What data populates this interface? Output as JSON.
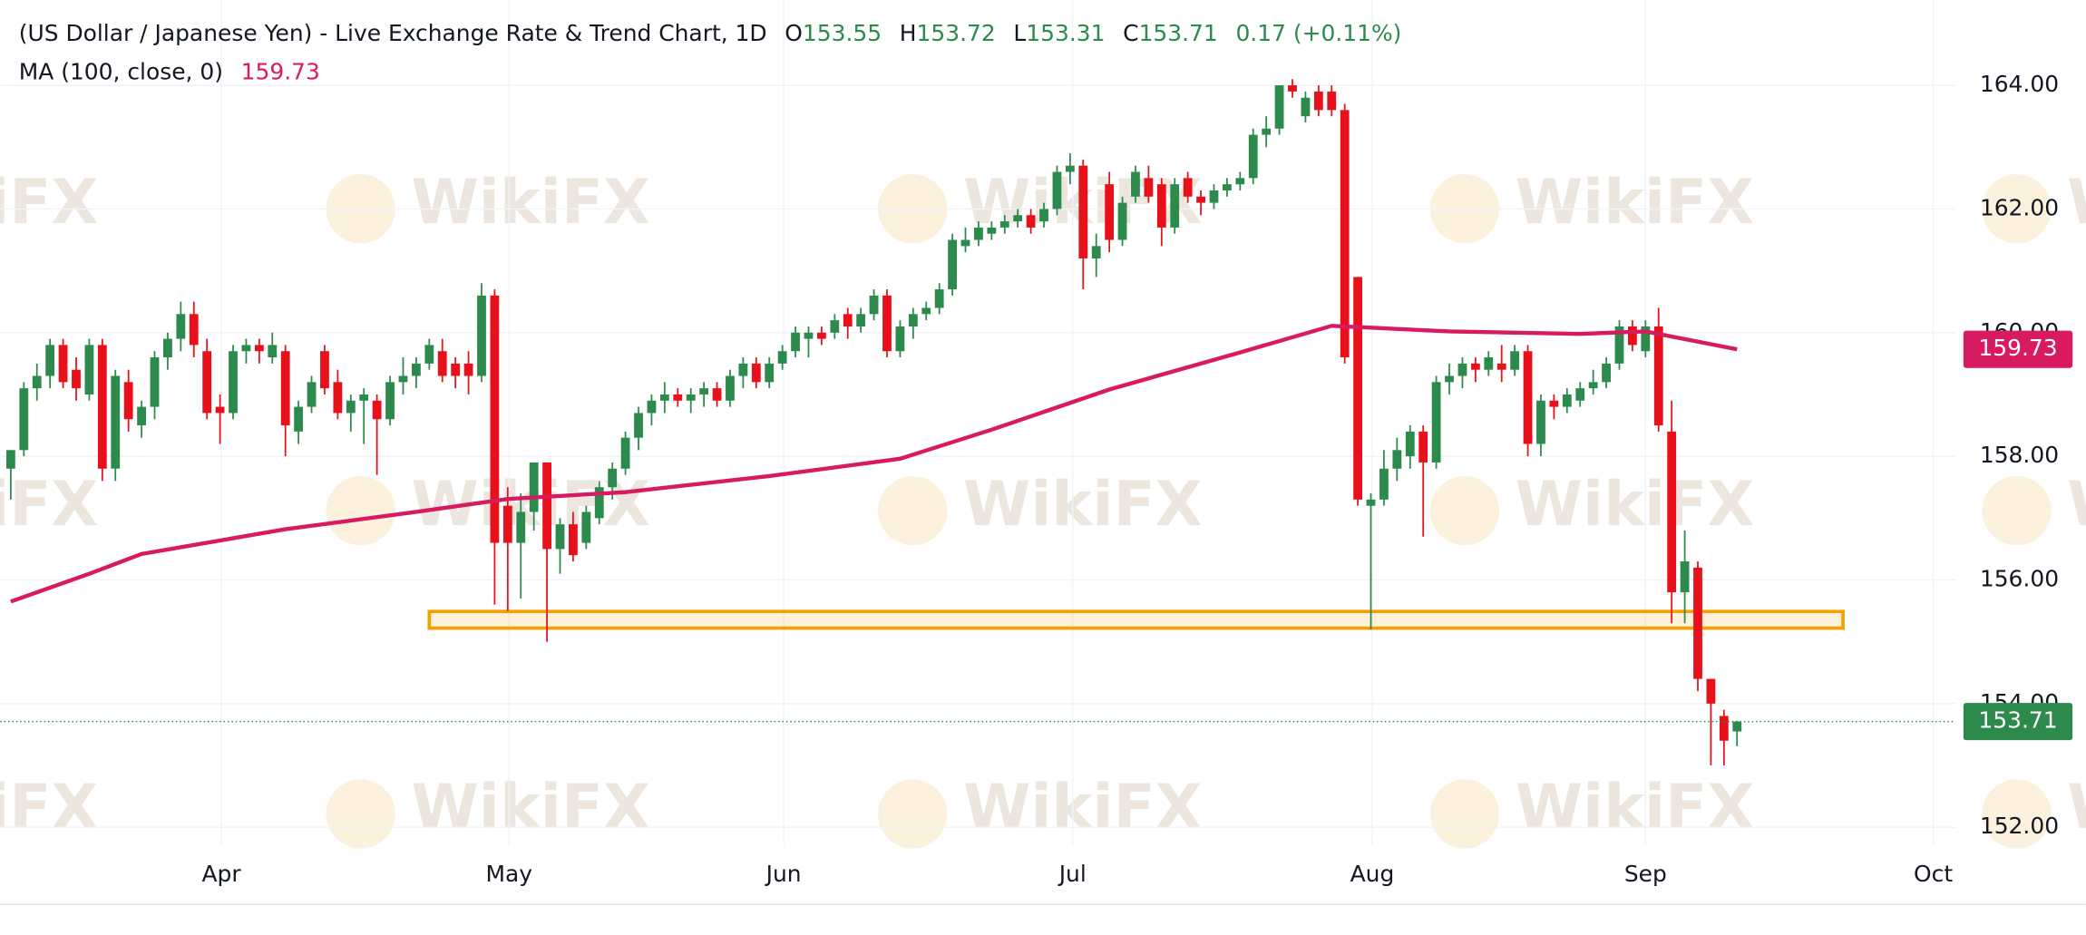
{
  "chart_data": {
    "type": "candlestick",
    "title": "(US Dollar / Japanese Yen) - Live Exchange Rate & Trend Chart, 1D",
    "ohlc_labels": [
      "O",
      "H",
      "L",
      "C"
    ],
    "change_label": "0.17 (+0.11%)",
    "watermark": "WikiFX",
    "up_color": "#2b8a4c",
    "down_color": "#e8111b",
    "ohlc": [
      [
        157.8,
        158.1,
        157.3,
        158.1
      ],
      [
        158.1,
        159.2,
        158.0,
        159.1
      ],
      [
        159.1,
        159.5,
        158.9,
        159.3
      ],
      [
        159.3,
        159.9,
        159.1,
        159.8
      ],
      [
        159.8,
        159.9,
        159.1,
        159.2
      ],
      [
        159.4,
        159.6,
        158.9,
        159.1
      ],
      [
        159.0,
        159.9,
        158.9,
        159.8
      ],
      [
        159.8,
        159.9,
        157.6,
        157.8
      ],
      [
        157.8,
        159.4,
        157.6,
        159.3
      ],
      [
        159.2,
        159.4,
        158.4,
        158.6
      ],
      [
        158.5,
        158.9,
        158.3,
        158.8
      ],
      [
        158.8,
        159.7,
        158.6,
        159.6
      ],
      [
        159.6,
        160.0,
        159.4,
        159.9
      ],
      [
        159.9,
        160.5,
        159.7,
        160.3
      ],
      [
        160.3,
        160.5,
        159.6,
        159.8
      ],
      [
        159.7,
        159.9,
        158.6,
        158.7
      ],
      [
        158.8,
        159.0,
        158.2,
        158.7
      ],
      [
        158.7,
        159.8,
        158.6,
        159.7
      ],
      [
        159.7,
        159.9,
        159.5,
        159.8
      ],
      [
        159.8,
        159.9,
        159.5,
        159.7
      ],
      [
        159.6,
        160.0,
        159.5,
        159.8
      ],
      [
        159.7,
        159.8,
        158.0,
        158.5
      ],
      [
        158.4,
        158.9,
        158.2,
        158.8
      ],
      [
        158.8,
        159.3,
        158.7,
        159.2
      ],
      [
        159.7,
        159.8,
        159.0,
        159.1
      ],
      [
        159.2,
        159.4,
        158.6,
        158.7
      ],
      [
        158.7,
        159.0,
        158.4,
        158.9
      ],
      [
        158.9,
        159.1,
        158.2,
        159.0
      ],
      [
        158.9,
        159.0,
        157.7,
        158.6
      ],
      [
        158.6,
        159.3,
        158.5,
        159.2
      ],
      [
        159.2,
        159.6,
        159.0,
        159.3
      ],
      [
        159.3,
        159.6,
        159.1,
        159.5
      ],
      [
        159.5,
        159.9,
        159.4,
        159.8
      ],
      [
        159.7,
        159.9,
        159.2,
        159.3
      ],
      [
        159.5,
        159.6,
        159.1,
        159.3
      ],
      [
        159.5,
        159.7,
        159.0,
        159.3
      ],
      [
        159.3,
        160.8,
        159.2,
        160.6
      ],
      [
        160.6,
        160.7,
        155.6,
        156.6
      ],
      [
        157.2,
        157.5,
        155.5,
        156.6
      ],
      [
        156.6,
        157.4,
        155.7,
        157.1
      ],
      [
        157.1,
        157.9,
        156.8,
        157.9
      ],
      [
        157.9,
        157.9,
        155.0,
        156.5
      ],
      [
        156.5,
        157.0,
        156.1,
        156.9
      ],
      [
        156.9,
        157.1,
        156.3,
        156.4
      ],
      [
        156.6,
        157.2,
        156.5,
        157.1
      ],
      [
        157.0,
        157.6,
        156.9,
        157.5
      ],
      [
        157.5,
        157.9,
        157.3,
        157.8
      ],
      [
        157.8,
        158.4,
        157.7,
        158.3
      ],
      [
        158.3,
        158.8,
        158.1,
        158.7
      ],
      [
        158.7,
        159.0,
        158.5,
        158.9
      ],
      [
        158.9,
        159.2,
        158.7,
        159.0
      ],
      [
        159.0,
        159.1,
        158.8,
        158.9
      ],
      [
        158.9,
        159.1,
        158.7,
        159.0
      ],
      [
        159.0,
        159.2,
        158.8,
        159.1
      ],
      [
        159.1,
        159.2,
        158.8,
        158.9
      ],
      [
        158.9,
        159.4,
        158.8,
        159.3
      ],
      [
        159.3,
        159.6,
        159.1,
        159.5
      ],
      [
        159.5,
        159.6,
        159.1,
        159.2
      ],
      [
        159.2,
        159.6,
        159.1,
        159.5
      ],
      [
        159.5,
        159.8,
        159.4,
        159.7
      ],
      [
        159.7,
        160.1,
        159.6,
        160.0
      ],
      [
        159.9,
        160.1,
        159.6,
        160.0
      ],
      [
        160.0,
        160.1,
        159.8,
        159.9
      ],
      [
        160.0,
        160.3,
        159.9,
        160.2
      ],
      [
        160.3,
        160.4,
        159.9,
        160.1
      ],
      [
        160.1,
        160.4,
        160.0,
        160.3
      ],
      [
        160.3,
        160.7,
        160.2,
        160.6
      ],
      [
        160.6,
        160.7,
        159.6,
        159.7
      ],
      [
        159.7,
        160.2,
        159.6,
        160.1
      ],
      [
        160.1,
        160.4,
        159.9,
        160.3
      ],
      [
        160.3,
        160.5,
        160.2,
        160.4
      ],
      [
        160.4,
        160.8,
        160.3,
        160.7
      ],
      [
        160.7,
        161.6,
        160.6,
        161.5
      ],
      [
        161.4,
        161.7,
        161.3,
        161.5
      ],
      [
        161.5,
        161.8,
        161.4,
        161.7
      ],
      [
        161.6,
        161.8,
        161.5,
        161.7
      ],
      [
        161.7,
        161.9,
        161.6,
        161.8
      ],
      [
        161.8,
        162.0,
        161.7,
        161.9
      ],
      [
        161.9,
        162.0,
        161.6,
        161.7
      ],
      [
        161.8,
        162.1,
        161.7,
        162.0
      ],
      [
        162.0,
        162.7,
        161.9,
        162.6
      ],
      [
        162.6,
        162.9,
        162.4,
        162.7
      ],
      [
        162.7,
        162.8,
        160.7,
        161.2
      ],
      [
        161.2,
        161.6,
        160.9,
        161.4
      ],
      [
        162.4,
        162.6,
        161.3,
        161.5
      ],
      [
        161.5,
        162.2,
        161.4,
        162.1
      ],
      [
        162.2,
        162.7,
        162.1,
        162.6
      ],
      [
        162.5,
        162.7,
        162.1,
        162.2
      ],
      [
        162.4,
        162.5,
        161.4,
        161.7
      ],
      [
        161.7,
        162.5,
        161.6,
        162.4
      ],
      [
        162.5,
        162.6,
        162.1,
        162.2
      ],
      [
        162.2,
        162.3,
        161.9,
        162.1
      ],
      [
        162.1,
        162.4,
        162.0,
        162.3
      ],
      [
        162.3,
        162.5,
        162.2,
        162.4
      ],
      [
        162.4,
        162.6,
        162.3,
        162.5
      ],
      [
        162.5,
        163.3,
        162.4,
        163.2
      ],
      [
        163.2,
        163.5,
        163.0,
        163.3
      ],
      [
        163.3,
        164.0,
        163.2,
        164.0
      ],
      [
        164.0,
        164.1,
        163.8,
        163.9
      ],
      [
        163.5,
        163.9,
        163.4,
        163.8
      ],
      [
        163.9,
        164.0,
        163.5,
        163.6
      ],
      [
        163.9,
        164.0,
        163.5,
        163.6
      ],
      [
        163.6,
        163.7,
        159.5,
        159.6
      ],
      [
        160.9,
        160.9,
        157.2,
        157.3
      ],
      [
        157.2,
        157.4,
        155.2,
        157.3
      ],
      [
        157.3,
        158.1,
        157.2,
        157.8
      ],
      [
        157.8,
        158.3,
        157.6,
        158.1
      ],
      [
        158.0,
        158.5,
        157.8,
        158.4
      ],
      [
        158.4,
        158.5,
        156.7,
        157.9
      ],
      [
        157.9,
        159.3,
        157.8,
        159.2
      ],
      [
        159.2,
        159.5,
        159.0,
        159.3
      ],
      [
        159.3,
        159.6,
        159.1,
        159.5
      ],
      [
        159.5,
        159.6,
        159.2,
        159.4
      ],
      [
        159.4,
        159.7,
        159.3,
        159.6
      ],
      [
        159.5,
        159.8,
        159.2,
        159.4
      ],
      [
        159.4,
        159.8,
        159.3,
        159.7
      ],
      [
        159.7,
        159.8,
        158.0,
        158.2
      ],
      [
        158.2,
        159.0,
        158.0,
        158.9
      ],
      [
        158.9,
        159.0,
        158.6,
        158.8
      ],
      [
        158.8,
        159.1,
        158.7,
        159.0
      ],
      [
        158.9,
        159.2,
        158.8,
        159.1
      ],
      [
        159.1,
        159.4,
        159.0,
        159.2
      ],
      [
        159.2,
        159.6,
        159.1,
        159.5
      ],
      [
        159.5,
        160.2,
        159.4,
        160.1
      ],
      [
        160.1,
        160.2,
        159.7,
        159.8
      ],
      [
        159.7,
        160.2,
        159.6,
        160.1
      ],
      [
        160.1,
        160.4,
        158.4,
        158.5
      ],
      [
        158.4,
        158.9,
        155.3,
        155.8
      ],
      [
        155.8,
        156.8,
        155.3,
        156.3
      ],
      [
        156.2,
        156.3,
        154.2,
        154.4
      ],
      [
        154.4,
        154.4,
        153.0,
        154.0
      ],
      [
        153.8,
        153.9,
        153.0,
        153.4
      ],
      [
        153.55,
        153.72,
        153.31,
        153.71
      ]
    ],
    "ma": {
      "name": "MA (100, close, 0)",
      "color": "#d81b60",
      "x": [
        0,
        6,
        10,
        21,
        31,
        38,
        47,
        58,
        68,
        75,
        84,
        94,
        101,
        110,
        120,
        125,
        132
      ],
      "values": [
        155.65,
        156.1,
        156.42,
        156.82,
        157.1,
        157.31,
        157.42,
        157.68,
        157.96,
        158.43,
        159.08,
        159.68,
        160.11,
        160.02,
        159.98,
        160.02,
        159.73
      ]
    },
    "zone": {
      "x": [
        32.0,
        140.1
      ],
      "y": [
        155.22,
        155.49
      ],
      "color": "#f5a000"
    },
    "xlim": [
      -0.81,
      148.7
    ],
    "xticks": [
      {
        "value": 16.1,
        "label": "Apr"
      },
      {
        "value": 38.1,
        "label": "May"
      },
      {
        "value": 59.1,
        "label": "Jun"
      },
      {
        "value": 81.2,
        "label": "Jul"
      },
      {
        "value": 104.1,
        "label": "Aug"
      },
      {
        "value": 125.0,
        "label": "Sep"
      },
      {
        "value": 147.0,
        "label": "Oct"
      }
    ],
    "ylim": [
      151.72,
      165.38
    ],
    "yticks": [
      {
        "value": 152,
        "label": "152.00"
      },
      {
        "value": 154,
        "label": "154.00"
      },
      {
        "value": 156,
        "label": "156.00"
      },
      {
        "value": 158,
        "label": "158.00"
      },
      {
        "value": 160,
        "label": "160.00"
      },
      {
        "value": 162,
        "label": "162.00"
      },
      {
        "value": 164,
        "label": "164.00"
      }
    ],
    "grid": true
  }
}
